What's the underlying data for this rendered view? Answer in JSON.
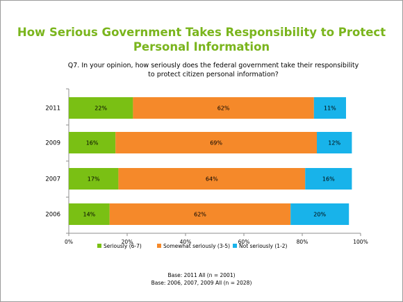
{
  "title": "How Serious Government Takes Responsibility to Protect Personal Information",
  "question": "Q7. In your opinion, how seriously does the federal government take their responsibility to protect citizen personal information?",
  "base_lines": [
    "Base: 2011 All (n = 2001)",
    "Base: 2006, 2007, 2009 All (n = 2028)"
  ],
  "chart_data": {
    "type": "bar",
    "orientation": "horizontal",
    "stacked": true,
    "categories": [
      "2011",
      "2009",
      "2007",
      "2006"
    ],
    "series": [
      {
        "name": "Seriously (6-7)",
        "color": "#7ac014",
        "values": [
          22,
          16,
          17,
          14
        ],
        "labels": [
          "22%",
          "16%",
          "17%",
          "14%"
        ]
      },
      {
        "name": "Somewhat seriously (3-5)",
        "color": "#f5892a",
        "values": [
          62,
          69,
          64,
          62
        ],
        "labels": [
          "62%",
          "69%",
          "64%",
          "62%"
        ]
      },
      {
        "name": "Not seriously (1-2)",
        "color": "#18b3ea",
        "values": [
          11,
          12,
          16,
          20
        ],
        "labels": [
          "11%",
          "12%",
          "16%",
          "20%"
        ]
      }
    ],
    "xlim": [
      0,
      100
    ],
    "x_ticks": [
      0,
      20,
      40,
      60,
      80,
      100
    ],
    "x_tick_labels": [
      "0%",
      "20%",
      "40%",
      "60%",
      "80%",
      "100%"
    ],
    "grid": false,
    "legend_position": "bottom"
  }
}
